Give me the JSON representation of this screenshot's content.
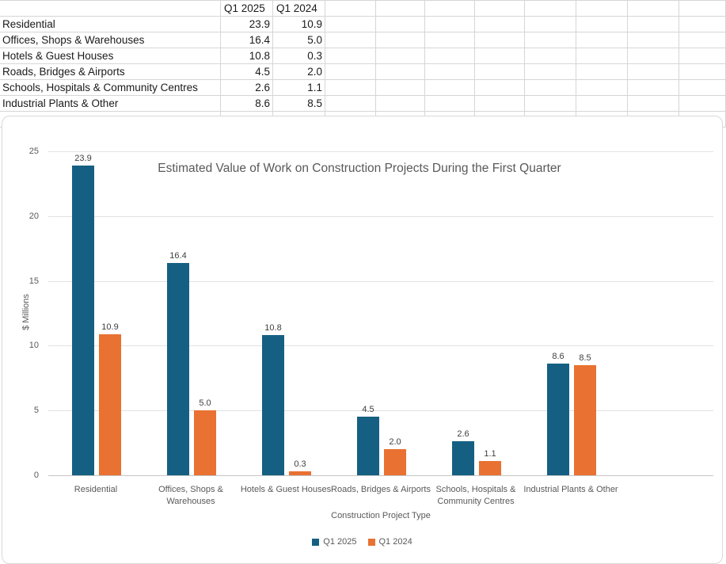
{
  "table": {
    "headers": [
      "Q1 2025",
      "Q1 2024"
    ],
    "rows": [
      [
        "Residential",
        "23.9",
        "10.9"
      ],
      [
        "Offices, Shops & Warehouses",
        "16.4",
        "5.0"
      ],
      [
        "Hotels & Guest Houses",
        "10.8",
        "0.3"
      ],
      [
        "Roads, Bridges & Airports",
        "4.5",
        "2.0"
      ],
      [
        "Schools, Hospitals & Community Centres",
        "2.6",
        "1.1"
      ],
      [
        "Industrial Plants & Other",
        "8.6",
        "8.5"
      ]
    ]
  },
  "chart_data": {
    "type": "bar",
    "title": "Estimated Value of Work on Construction Projects During the First Quarter",
    "xlabel": "Construction Project Type",
    "ylabel": "$ Millions",
    "categories": [
      "Residential",
      "Offices, Shops & Warehouses",
      "Hotels & Guest Houses",
      "Roads, Bridges & Airports",
      "Schools, Hospitals & Community Centres",
      "Industrial Plants & Other"
    ],
    "series": [
      {
        "name": "Q1 2025",
        "color": "#156082",
        "values": [
          23.9,
          16.4,
          10.8,
          4.5,
          2.6,
          8.6
        ]
      },
      {
        "name": "Q1 2024",
        "color": "#E97132",
        "values": [
          10.9,
          5.0,
          0.3,
          2.0,
          1.1,
          8.5
        ]
      }
    ],
    "ylim": [
      0,
      25
    ],
    "yticks": [
      0,
      5,
      10,
      15,
      20,
      25
    ],
    "grid": true,
    "data_labels": true,
    "legend_position": "bottom"
  }
}
